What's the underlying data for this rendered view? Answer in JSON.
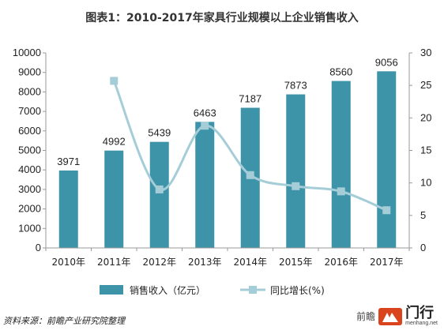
{
  "title": "图表1：2010-2017年家具行业规模以上企业销售收入",
  "chart_data": {
    "type": "bar+line",
    "categories": [
      "2010年",
      "2011年",
      "2012年",
      "2013年",
      "2014年",
      "2015年",
      "2016年",
      "2017年"
    ],
    "series": [
      {
        "name": "销售收入（亿元）",
        "type": "bar",
        "axis": "left",
        "values": [
          3971,
          4992,
          5439,
          6463,
          7187,
          7873,
          8560,
          9056
        ],
        "color": "#3d93a8"
      },
      {
        "name": "同比增长(%)",
        "type": "line",
        "axis": "right",
        "values": [
          null,
          25.7,
          9.0,
          18.8,
          11.2,
          9.5,
          8.7,
          5.8
        ],
        "color": "#a5cdd8"
      }
    ],
    "left_axis": {
      "min": 0,
      "max": 10000,
      "step": 1000,
      "ticks": [
        "0",
        "1000",
        "2000",
        "3000",
        "4000",
        "5000",
        "6000",
        "7000",
        "8000",
        "9000",
        "10000"
      ]
    },
    "right_axis": {
      "min": 0,
      "max": 30,
      "step": 5,
      "ticks": [
        "0",
        "5",
        "10",
        "15",
        "20",
        "25",
        "30"
      ]
    },
    "data_labels": [
      "3971",
      "4992",
      "5439",
      "6463",
      "7187",
      "7873",
      "8560",
      "9056"
    ],
    "grid": false,
    "legend_position": "bottom"
  },
  "source_note": "资料来源：前瞻产业研究院整理",
  "watermark_text": "前瞻",
  "brand": {
    "name": "门行",
    "url": "menhang.net"
  }
}
